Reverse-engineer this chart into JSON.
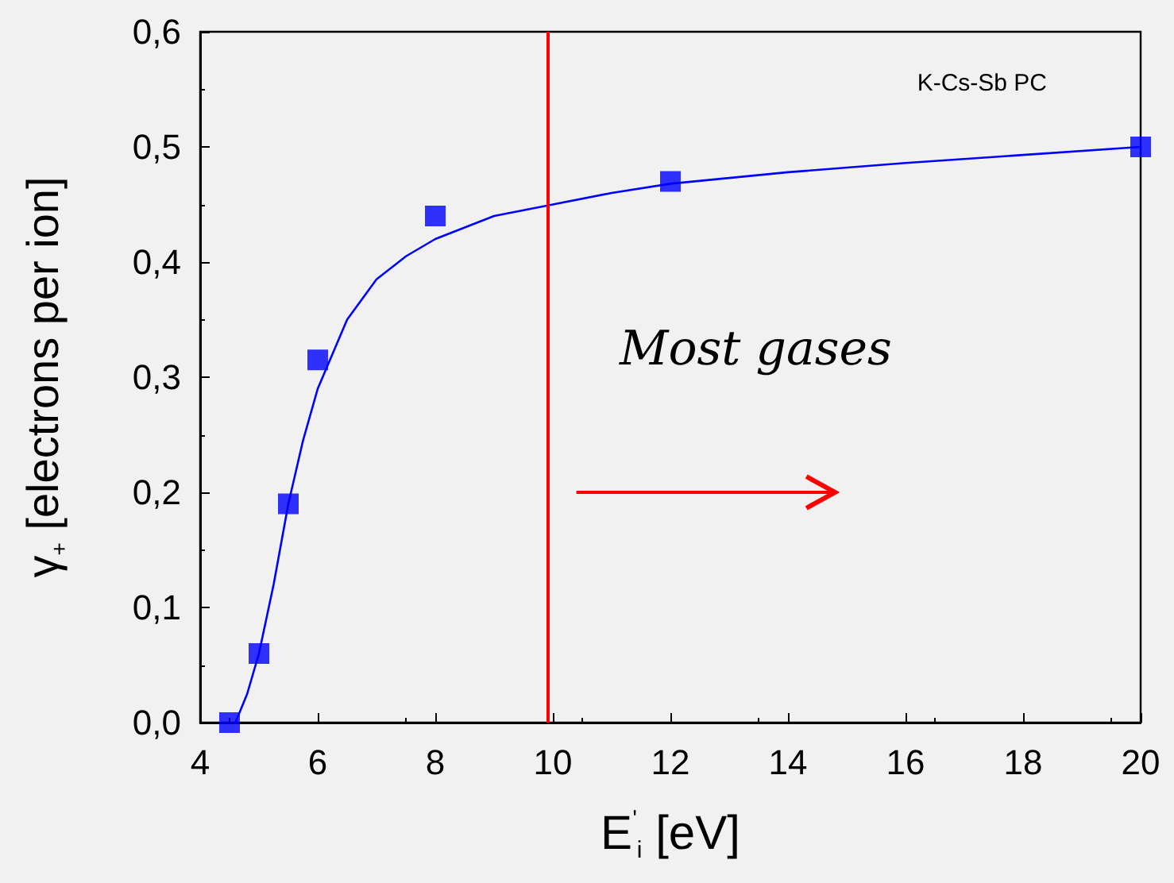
{
  "chart_data": {
    "type": "scatter",
    "xlabel": "E$^{'}$$_{i}$ [eV]",
    "ylabel": "γ$_{+}$ [electrons per ion]",
    "x": [
      4.5,
      5.0,
      5.5,
      6.0,
      8.0,
      12.0,
      20.0
    ],
    "series": [
      {
        "color": "#0000ff",
        "values": [
          0.0,
          0.06,
          0.19,
          0.315,
          0.44,
          0.47,
          0.5
        ],
        "marker": "square"
      },
      {
        "type": "line",
        "color": "#0000ff",
        "marker": "none",
        "line_style": "solid",
        "x": [
          4.6,
          4.8,
          5.0,
          5.25,
          5.5,
          5.75,
          6.0,
          6.5,
          7.0,
          7.5,
          8.0,
          9.0,
          10.0,
          11.0,
          12.0,
          14.0,
          16.0,
          18.0,
          20.0
        ],
        "values": [
          0.0,
          0.025,
          0.06,
          0.12,
          0.19,
          0.245,
          0.29,
          0.35,
          0.385,
          0.405,
          0.42,
          0.44,
          0.45,
          0.46,
          0.468,
          0.478,
          0.486,
          0.493,
          0.5
        ]
      }
    ],
    "xlim": [
      4,
      20
    ],
    "xticks": [
      4,
      6,
      8,
      10,
      12,
      14,
      16,
      18,
      20
    ],
    "ylim": [
      0,
      0.6
    ],
    "yticks": [
      {
        "value": 0,
        "label": "0,0"
      },
      {
        "value": 0.1,
        "label": "0,1"
      },
      {
        "value": 0.2,
        "label": "0,2"
      },
      {
        "value": 0.3,
        "label": "0,3"
      },
      {
        "value": 0.4,
        "label": "0,4"
      },
      {
        "value": 0.5,
        "label": "0,5"
      },
      {
        "value": 0.6,
        "label": "0,6"
      }
    ],
    "ref_lines": [
      {
        "axis": "x",
        "value": 9.9,
        "color": "#ff0000"
      }
    ],
    "annotations": [
      "K-Cs-Sb PC",
      "Most gases"
    ]
  }
}
